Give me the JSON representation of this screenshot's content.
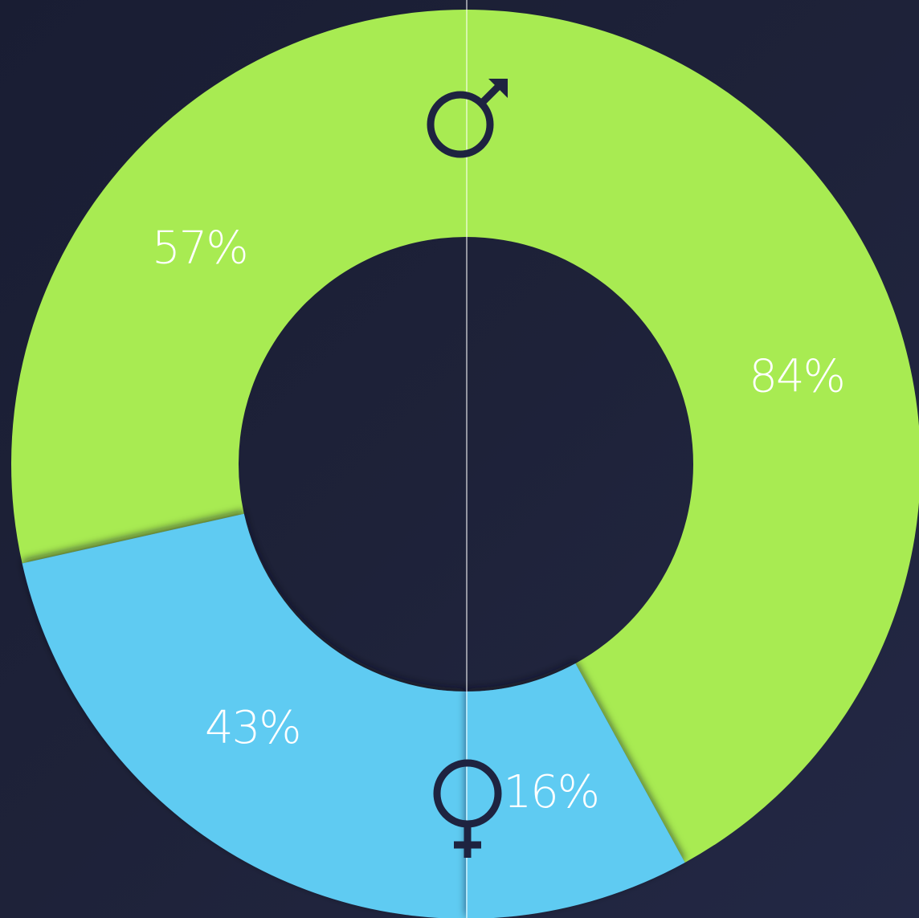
{
  "chart_data": {
    "type": "donut",
    "groups": [
      {
        "values": [
          57,
          43
        ],
        "value_labels": [
          "57%",
          "43%"
        ]
      },
      {
        "values": [
          84,
          16
        ],
        "value_labels": [
          "84%",
          "16%"
        ]
      }
    ],
    "colors": [
      "#a8eb52",
      "#5ecbf2"
    ]
  }
}
